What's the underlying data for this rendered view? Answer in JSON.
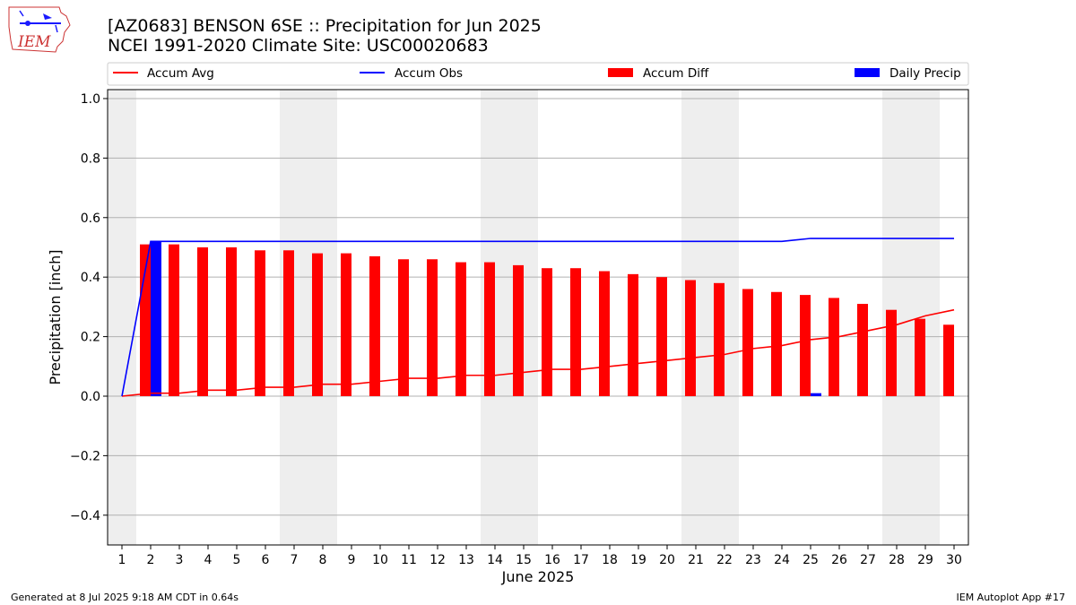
{
  "title_line1": "[AZ0683] BENSON 6SE :: Precipitation for Jun 2025",
  "title_line2": "NCEI 1991-2020 Climate Site: USC00020683",
  "logo_text": "IEM",
  "footer_left": "Generated at 8 Jul 2025 9:18 AM CDT in 0.64s",
  "footer_right": "IEM Autoplot App #17",
  "colors": {
    "avg": "#ff0000",
    "obs": "#0000ff",
    "diff": "#ff0000",
    "daily": "#0000ff",
    "weekend": "#eeeeee",
    "grid": "#b0b0b0"
  },
  "chart_data": {
    "type": "bar",
    "xlabel": "June 2025",
    "ylabel": "Precipitation [inch]",
    "ylim": [
      -0.5,
      1.03
    ],
    "yticks": [
      -0.4,
      -0.2,
      0.0,
      0.2,
      0.4,
      0.6,
      0.8,
      1.0
    ],
    "ytick_labels": [
      "−0.4",
      "−0.2",
      "0.0",
      "0.2",
      "0.4",
      "0.6",
      "0.8",
      "1.0"
    ],
    "x": [
      1,
      2,
      3,
      4,
      5,
      6,
      7,
      8,
      9,
      10,
      11,
      12,
      13,
      14,
      15,
      16,
      17,
      18,
      19,
      20,
      21,
      22,
      23,
      24,
      25,
      26,
      27,
      28,
      29,
      30
    ],
    "legend": {
      "placement": "top",
      "entries": [
        "Accum Avg",
        "Accum Obs",
        "Accum Diff",
        "Daily Precip"
      ]
    },
    "grid": true,
    "weekends": [
      [
        1,
        1
      ],
      [
        7,
        8
      ],
      [
        14,
        15
      ],
      [
        21,
        22
      ],
      [
        28,
        29
      ]
    ],
    "series": [
      {
        "name": "Accum Avg",
        "type": "line",
        "values": [
          0.0,
          0.01,
          0.01,
          0.02,
          0.02,
          0.03,
          0.03,
          0.04,
          0.04,
          0.05,
          0.06,
          0.06,
          0.07,
          0.07,
          0.08,
          0.09,
          0.09,
          0.1,
          0.11,
          0.12,
          0.13,
          0.14,
          0.16,
          0.17,
          0.19,
          0.2,
          0.22,
          0.24,
          0.27,
          0.29
        ]
      },
      {
        "name": "Accum Obs",
        "type": "line",
        "values": [
          0.0,
          0.52,
          0.52,
          0.52,
          0.52,
          0.52,
          0.52,
          0.52,
          0.52,
          0.52,
          0.52,
          0.52,
          0.52,
          0.52,
          0.52,
          0.52,
          0.52,
          0.52,
          0.52,
          0.52,
          0.52,
          0.52,
          0.52,
          0.52,
          0.53,
          0.53,
          0.53,
          0.53,
          0.53,
          0.53
        ]
      },
      {
        "name": "Accum Diff",
        "type": "bar",
        "values": [
          0.0,
          0.51,
          0.51,
          0.5,
          0.5,
          0.49,
          0.49,
          0.48,
          0.48,
          0.47,
          0.46,
          0.46,
          0.45,
          0.45,
          0.44,
          0.43,
          0.43,
          0.42,
          0.41,
          0.4,
          0.39,
          0.38,
          0.36,
          0.35,
          0.34,
          0.33,
          0.31,
          0.29,
          0.26,
          0.24
        ]
      },
      {
        "name": "Daily Precip",
        "type": "bar",
        "values": [
          0,
          0.52,
          0,
          0,
          0,
          0,
          0,
          0,
          0,
          0,
          0,
          0,
          0,
          0,
          0,
          0,
          0,
          0,
          0,
          0,
          0,
          0,
          0,
          0,
          0.01,
          0,
          0,
          0,
          0,
          0
        ]
      }
    ]
  }
}
